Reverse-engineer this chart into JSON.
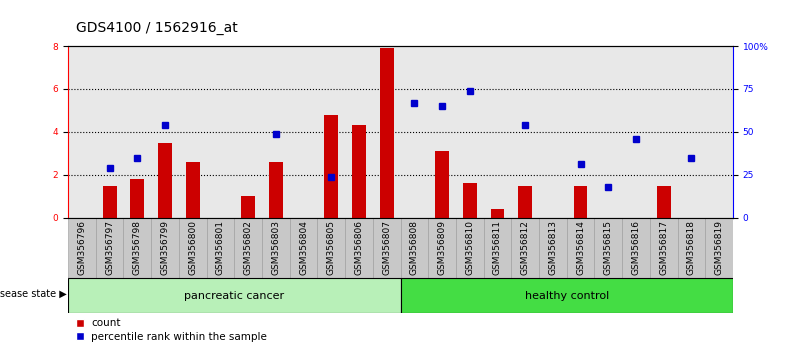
{
  "title": "GDS4100 / 1562916_at",
  "samples": [
    "GSM356796",
    "GSM356797",
    "GSM356798",
    "GSM356799",
    "GSM356800",
    "GSM356801",
    "GSM356802",
    "GSM356803",
    "GSM356804",
    "GSM356805",
    "GSM356806",
    "GSM356807",
    "GSM356808",
    "GSM356809",
    "GSM356810",
    "GSM356811",
    "GSM356812",
    "GSM356813",
    "GSM356814",
    "GSM356815",
    "GSM356816",
    "GSM356817",
    "GSM356818",
    "GSM356819"
  ],
  "red_bars": [
    0.0,
    1.5,
    1.8,
    3.5,
    2.6,
    0.0,
    1.0,
    2.6,
    0.0,
    4.8,
    4.3,
    7.9,
    0.0,
    3.1,
    1.6,
    0.4,
    1.5,
    0.0,
    1.5,
    0.0,
    0.0,
    1.5,
    0.0,
    0.0
  ],
  "blue_dots": [
    0.0,
    2.3,
    2.8,
    4.3,
    0.0,
    0.0,
    0.0,
    3.9,
    0.0,
    1.9,
    0.0,
    0.0,
    5.35,
    5.2,
    5.9,
    0.0,
    4.3,
    0.0,
    2.5,
    1.45,
    3.65,
    0.0,
    2.8,
    0.0
  ],
  "disease_groups": [
    {
      "label": "pancreatic cancer",
      "start": 0,
      "end": 12
    },
    {
      "label": "healthy control",
      "start": 12,
      "end": 24
    }
  ],
  "group_colors": [
    "#b8f0b8",
    "#44dd44"
  ],
  "ylim_left": [
    0,
    8
  ],
  "ylim_right": [
    0,
    100
  ],
  "yticks_left": [
    0,
    2,
    4,
    6,
    8
  ],
  "yticks_right": [
    0,
    25,
    50,
    75,
    100
  ],
  "ytick_labels_right": [
    "0",
    "25",
    "50",
    "75",
    "100%"
  ],
  "bar_color": "#CC0000",
  "dot_color": "#0000CC",
  "bg_plot": "#E8E8E8",
  "bg_label": "#C8C8C8",
  "title_fontsize": 10,
  "tick_fontsize": 6.5,
  "label_fontsize": 8,
  "legend_fontsize": 7.5,
  "disease_label": "disease state"
}
